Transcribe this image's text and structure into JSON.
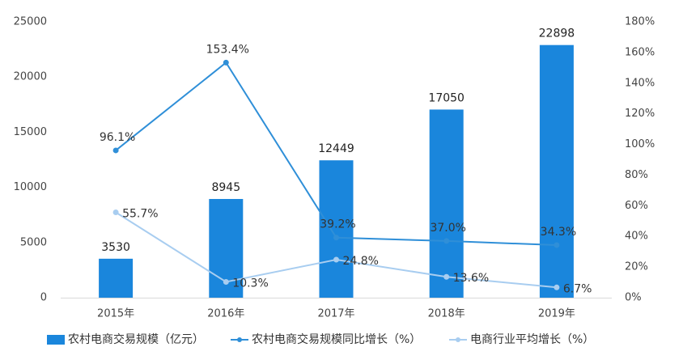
{
  "chart_data": {
    "type": "combo",
    "categories": [
      "2015年",
      "2016年",
      "2017年",
      "2018年",
      "2019年"
    ],
    "series": [
      {
        "name": "农村电商交易规模（亿元）",
        "type": "bar",
        "color": "#1a86dc",
        "values": [
          3530,
          8945,
          12449,
          17050,
          22898
        ]
      },
      {
        "name": "农村电商交易规模同比增长（%）",
        "type": "line",
        "axis": "y2",
        "color": "#2f8fd8",
        "values": [
          96.1,
          153.4,
          39.2,
          37.0,
          34.3
        ],
        "value_labels": [
          "96.1%",
          "153.4%",
          "39.2%",
          "37.0%",
          "34.3%"
        ]
      },
      {
        "name": "电商行业平均增长（%）",
        "type": "line",
        "axis": "y2",
        "color": "#a8cdf0",
        "values": [
          55.7,
          10.3,
          24.8,
          13.6,
          6.7
        ],
        "value_labels": [
          "55.7%",
          "10.3%",
          "24.8%",
          "13.6%",
          "6.7%"
        ]
      }
    ],
    "ylim": [
      0,
      25000
    ],
    "yticks": [
      0,
      5000,
      10000,
      15000,
      20000,
      25000
    ],
    "y2lim": [
      0,
      180
    ],
    "y2ticks": [
      {
        "value": 0,
        "label": "0%"
      },
      {
        "value": 20,
        "label": "20%"
      },
      {
        "value": 40,
        "label": "40%"
      },
      {
        "value": 60,
        "label": "60%"
      },
      {
        "value": 80,
        "label": "80%"
      },
      {
        "value": 100,
        "label": "100%"
      },
      {
        "value": 120,
        "label": "120%"
      },
      {
        "value": 140,
        "label": "140%"
      },
      {
        "value": 160,
        "label": "160%"
      },
      {
        "value": 180,
        "label": "180%"
      }
    ],
    "grid": false,
    "legend": "bottom"
  }
}
